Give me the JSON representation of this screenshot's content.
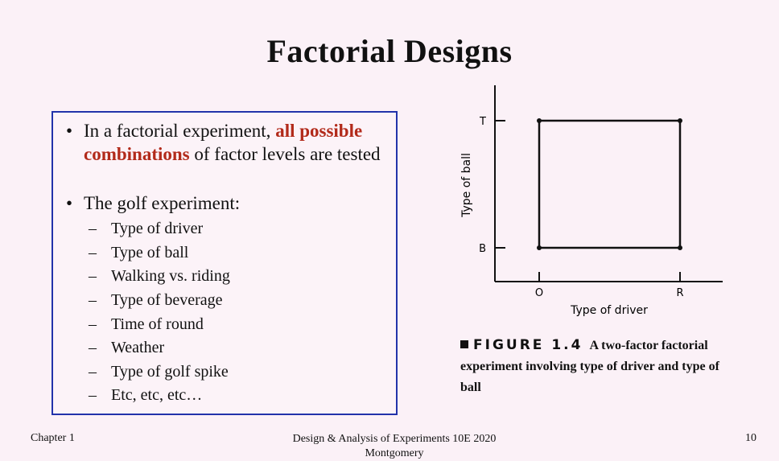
{
  "slide": {
    "title": "Factorial Designs"
  },
  "bullets": [
    {
      "text_before": "In a factorial experiment, ",
      "text_emphasis": "all possible combinations",
      "text_after": " of factor levels are tested"
    },
    {
      "text": "The golf experiment:",
      "subitems": [
        "Type of driver",
        "Type of ball",
        "Walking vs. riding",
        "Type of beverage",
        "Time of round",
        "Weather",
        "Type of golf spike",
        "Etc, etc, etc…"
      ]
    }
  ],
  "figure": {
    "x_axis_label": "Type of driver",
    "y_axis_label": "Type of ball",
    "x_levels": [
      "O",
      "R"
    ],
    "y_levels": [
      "B",
      "T"
    ],
    "caption_label": "FIGURE 1.4",
    "caption_text": "A two-factor factorial experiment involving type of driver and type of ball"
  },
  "footer": {
    "left": "Chapter 1",
    "center_line1": "Design & Analysis of Experiments 10E 2020",
    "center_line2": "Montgomery",
    "page_number": "10"
  },
  "colors": {
    "background": "#fbf1f7",
    "box_border": "#2233aa",
    "emphasis": "#b22a1a"
  }
}
